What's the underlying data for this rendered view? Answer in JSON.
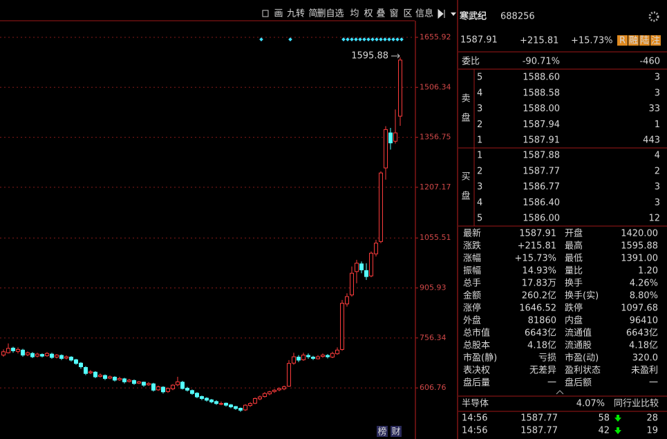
{
  "chart_data": {
    "type": "candlestick",
    "ylim": [
      453.9,
      1705.6
    ],
    "yticks": [
      606.76,
      756.34,
      905.93,
      1055.51,
      1207.17,
      1356.75,
      1506.34,
      1655.92
    ],
    "grid": true,
    "up_color": "#ff3c3c",
    "down_color": "#54ffff",
    "max_label": 1595.88,
    "ohlc": [
      [
        705,
        722,
        700,
        715
      ],
      [
        712,
        740,
        710,
        725
      ],
      [
        726,
        730,
        712,
        718
      ],
      [
        716,
        728,
        710,
        722
      ],
      [
        720,
        724,
        700,
        705
      ],
      [
        706,
        716,
        702,
        712
      ],
      [
        710,
        714,
        696,
        700
      ],
      [
        702,
        712,
        698,
        708
      ],
      [
        707,
        710,
        698,
        702
      ],
      [
        703,
        714,
        700,
        710
      ],
      [
        708,
        712,
        694,
        698
      ],
      [
        699,
        708,
        695,
        705
      ],
      [
        704,
        707,
        690,
        695
      ],
      [
        696,
        704,
        692,
        700
      ],
      [
        699,
        702,
        686,
        690
      ],
      [
        691,
        694,
        676,
        680
      ],
      [
        681,
        684,
        664,
        670
      ],
      [
        668,
        672,
        645,
        650
      ],
      [
        652,
        660,
        648,
        655
      ],
      [
        654,
        657,
        636,
        640
      ],
      [
        641,
        650,
        638,
        645
      ],
      [
        644,
        647,
        630,
        635
      ],
      [
        636,
        644,
        633,
        640
      ],
      [
        639,
        642,
        626,
        630
      ],
      [
        631,
        640,
        628,
        635
      ],
      [
        634,
        637,
        620,
        625
      ],
      [
        626,
        634,
        623,
        630
      ],
      [
        629,
        632,
        616,
        620
      ],
      [
        621,
        628,
        618,
        625
      ],
      [
        624,
        626,
        610,
        615
      ],
      [
        616,
        624,
        613,
        620
      ],
      [
        619,
        622,
        596,
        600
      ],
      [
        601,
        614,
        598,
        610
      ],
      [
        609,
        612,
        590,
        595
      ],
      [
        596,
        608,
        592,
        605
      ],
      [
        604,
        618,
        600,
        615
      ],
      [
        616,
        640,
        612,
        625
      ],
      [
        624,
        628,
        602,
        605
      ],
      [
        606,
        610,
        596,
        600
      ],
      [
        599,
        602,
        586,
        590
      ],
      [
        591,
        594,
        576,
        580
      ],
      [
        581,
        584,
        570,
        575
      ],
      [
        576,
        579,
        566,
        570
      ],
      [
        571,
        574,
        561,
        565
      ],
      [
        566,
        570,
        556,
        560
      ],
      [
        559,
        566,
        555,
        560
      ],
      [
        561,
        563,
        551,
        555
      ],
      [
        556,
        559,
        546,
        550
      ],
      [
        551,
        553,
        541,
        545
      ],
      [
        546,
        548,
        535,
        540
      ],
      [
        541,
        558,
        538,
        555
      ],
      [
        554,
        564,
        550,
        560
      ],
      [
        561,
        578,
        558,
        575
      ],
      [
        574,
        584,
        570,
        580
      ],
      [
        581,
        594,
        578,
        590
      ],
      [
        589,
        598,
        585,
        595
      ],
      [
        596,
        603,
        592,
        600
      ],
      [
        601,
        608,
        597,
        605
      ],
      [
        604,
        614,
        600,
        610
      ],
      [
        612,
        690,
        610,
        680
      ],
      [
        681,
        712,
        676,
        700
      ],
      [
        699,
        705,
        684,
        690
      ],
      [
        691,
        712,
        688,
        705
      ],
      [
        704,
        710,
        694,
        700
      ],
      [
        699,
        703,
        690,
        695
      ],
      [
        694,
        705,
        692,
        700
      ],
      [
        701,
        710,
        697,
        705
      ],
      [
        704,
        708,
        695,
        700
      ],
      [
        699,
        715,
        696,
        710
      ],
      [
        709,
        728,
        706,
        720
      ],
      [
        722,
        870,
        718,
        860
      ],
      [
        858,
        890,
        850,
        880
      ],
      [
        885,
        970,
        880,
        950
      ],
      [
        955,
        990,
        920,
        980
      ],
      [
        978,
        985,
        950,
        960
      ],
      [
        958,
        980,
        930,
        940
      ],
      [
        942,
        1015,
        938,
        1010
      ],
      [
        1008,
        1050,
        1000,
        1040
      ],
      [
        1045,
        1255,
        1040,
        1250
      ],
      [
        1265,
        1390,
        1230,
        1380
      ],
      [
        1370,
        1385,
        1320,
        1340
      ],
      [
        1345,
        1440,
        1338,
        1370
      ],
      [
        1420,
        1595.88,
        1391,
        1587.91
      ]
    ]
  },
  "toolbar": [
    "画",
    "九转",
    "简",
    "删自选",
    "均",
    "权",
    "叠",
    "窗",
    "区",
    "信息"
  ],
  "footer_buttons": [
    "榜",
    "财"
  ],
  "quote": {
    "name": "寒武纪",
    "code": "688256",
    "price": "1587.91",
    "change": "+215.81",
    "pct": "+15.73%",
    "badges": [
      "R",
      "融",
      "陆",
      "注"
    ]
  },
  "order_ratio": {
    "label": "委比",
    "pct": "-90.71%",
    "diff": "-460"
  },
  "sell_label": [
    "卖",
    "盘"
  ],
  "sell": [
    [
      "5",
      "1588.60",
      "3"
    ],
    [
      "4",
      "1588.58",
      "3"
    ],
    [
      "3",
      "1588.00",
      "33"
    ],
    [
      "2",
      "1587.94",
      "1"
    ],
    [
      "1",
      "1587.91",
      "443"
    ]
  ],
  "buy_label": [
    "买",
    "盘"
  ],
  "buy": [
    [
      "1",
      "1587.88",
      "4"
    ],
    [
      "2",
      "1587.77",
      "2"
    ],
    [
      "3",
      "1586.77",
      "3"
    ],
    [
      "4",
      "1586.40",
      "3"
    ],
    [
      "5",
      "1586.00",
      "12"
    ]
  ],
  "stats": [
    [
      [
        "最新",
        "1587.91",
        "r"
      ],
      [
        "开盘",
        "1420.00",
        "r"
      ]
    ],
    [
      [
        "涨跌",
        "+215.81",
        "r"
      ],
      [
        "最高",
        "1595.88",
        "r"
      ]
    ],
    [
      [
        "涨幅",
        "+15.73%",
        "r"
      ],
      [
        "最低",
        "1391.00",
        "r"
      ]
    ],
    [
      [
        "振幅",
        "14.93%",
        "c"
      ],
      [
        "量比",
        "1.20",
        "r"
      ]
    ],
    [
      [
        "总手",
        "17.83万",
        "c"
      ],
      [
        "换手",
        "4.26%",
        "c"
      ]
    ],
    [
      [
        "金额",
        "260.2亿",
        "c"
      ],
      [
        "换手(实)",
        "8.80%",
        "c"
      ]
    ],
    [
      [
        "涨停",
        "1646.52",
        "r"
      ],
      [
        "跌停",
        "1097.68",
        "g"
      ]
    ],
    [
      [
        "外盘",
        "81860",
        "r"
      ],
      [
        "内盘",
        "96410",
        "g"
      ]
    ],
    [
      [
        "总市值",
        "6643亿",
        "c"
      ],
      [
        "流通值",
        "6643亿",
        "c"
      ]
    ],
    [
      [
        "总股本",
        "4.18亿",
        "c"
      ],
      [
        "流通股",
        "4.18亿",
        "c"
      ]
    ],
    [
      [
        "市盈(静)",
        "亏损",
        "w"
      ],
      [
        "市盈(动)",
        "320.0",
        "w"
      ]
    ],
    [
      [
        "表决权",
        "无差异",
        "c"
      ],
      [
        "盈利状态",
        "未盈利",
        "c"
      ]
    ],
    [
      [
        "盘后量",
        "一",
        "w"
      ],
      [
        "盘后额",
        "一",
        "w"
      ]
    ]
  ],
  "sector": {
    "name": "半导体",
    "pct": "4.07%",
    "link": "同行业比较"
  },
  "trades": [
    [
      "14:56",
      "1587.77",
      "58",
      "28"
    ],
    [
      "14:56",
      "1587.77",
      "42",
      "19"
    ]
  ]
}
